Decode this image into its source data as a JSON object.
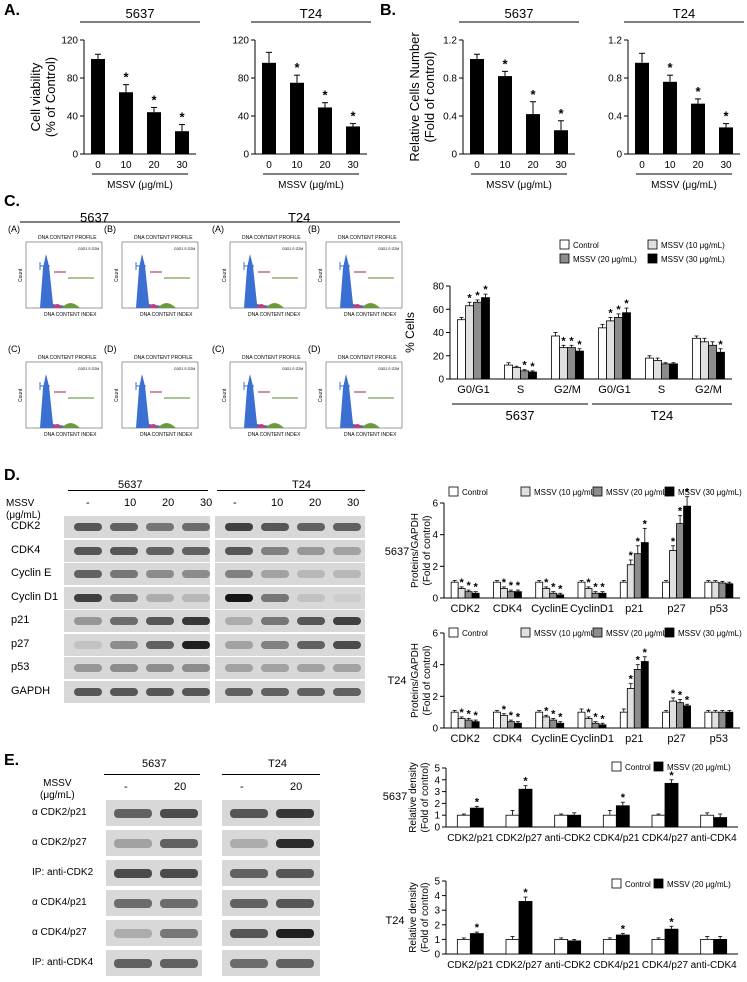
{
  "panels": {
    "A": "A.",
    "B": "B.",
    "C": "C.",
    "D": "D.",
    "E": "E."
  },
  "common": {
    "mssv_unit": "MSSV (μg/mL)",
    "cell_5637": "5637",
    "cell_t24": "T24"
  },
  "chart_data": [
    {
      "id": "A-5637",
      "type": "bar",
      "header": "5637",
      "ylabel": "Cell viability\n(% of Control)",
      "xlabel": "MSSV (μg/mL)",
      "categories": [
        "0",
        "10",
        "20",
        "30"
      ],
      "values": [
        100,
        65,
        44,
        24
      ],
      "errors": [
        5,
        8,
        5,
        7
      ],
      "sig": [
        false,
        true,
        true,
        true
      ],
      "ylim": [
        0,
        120
      ],
      "yticks": [
        "0",
        "40",
        "80",
        "120"
      ]
    },
    {
      "id": "A-T24",
      "type": "bar",
      "header": "T24",
      "xlabel": "MSSV (μg/mL)",
      "categories": [
        "0",
        "10",
        "20",
        "30"
      ],
      "values": [
        96,
        75,
        49,
        29
      ],
      "errors": [
        11,
        8,
        5,
        3
      ],
      "sig": [
        false,
        true,
        true,
        true
      ],
      "ylim": [
        0,
        120
      ],
      "yticks": [
        "0",
        "40",
        "80",
        "120"
      ]
    },
    {
      "id": "B-5637",
      "type": "bar",
      "header": "5637",
      "ylabel": "Relative Cells Number\n(Fold of control)",
      "xlabel": "MSSV (μg/mL)",
      "categories": [
        "0",
        "10",
        "20",
        "30"
      ],
      "values": [
        1.0,
        0.82,
        0.42,
        0.25
      ],
      "errors": [
        0.05,
        0.05,
        0.13,
        0.1
      ],
      "sig": [
        false,
        true,
        true,
        true
      ],
      "ylim": [
        0,
        1.2
      ],
      "yticks": [
        "0",
        "0.4",
        "0.8",
        "1.2"
      ]
    },
    {
      "id": "B-T24",
      "type": "bar",
      "header": "T24",
      "xlabel": "MSSV (μg/mL)",
      "categories": [
        "0",
        "10",
        "20",
        "30"
      ],
      "values": [
        0.96,
        0.76,
        0.53,
        0.28
      ],
      "errors": [
        0.1,
        0.07,
        0.05,
        0.04
      ],
      "sig": [
        false,
        true,
        true,
        true
      ],
      "ylim": [
        0,
        1.2
      ],
      "yticks": [
        "0",
        "0.4",
        "0.8",
        "1.2"
      ]
    },
    {
      "id": "C-cellcycle",
      "type": "bar",
      "ylabel": "% Cells",
      "ylim": [
        0,
        80
      ],
      "yticks": [
        "0",
        "20",
        "40",
        "60",
        "80"
      ],
      "groups": [
        "G0/G1",
        "S",
        "G2/M",
        "G0/G1",
        "S",
        "G2/M"
      ],
      "group_labels": [
        "5637",
        "T24"
      ],
      "legend": [
        "Control",
        "MSSV (10 μg/mL)",
        "MSSV (20 μg/mL)",
        "MSSV (30 μg/mL)"
      ],
      "series": [
        {
          "name": "Control",
          "values": [
            51,
            12,
            37,
            44,
            18,
            35
          ],
          "errors": [
            2,
            2,
            3,
            3,
            2,
            2
          ]
        },
        {
          "name": "MSSV (10 μg/mL)",
          "values": [
            63,
            10,
            27,
            50,
            16,
            32
          ],
          "errors": [
            3,
            1,
            2,
            3,
            2,
            3
          ]
        },
        {
          "name": "MSSV (20 μg/mL)",
          "values": [
            66,
            7,
            27,
            53,
            13,
            29
          ],
          "errors": [
            2,
            1,
            2,
            3,
            1,
            3
          ]
        },
        {
          "name": "MSSV (30 μg/mL)",
          "values": [
            70,
            6,
            24,
            57,
            13,
            23
          ],
          "errors": [
            3,
            1,
            2,
            4,
            1,
            3
          ]
        }
      ],
      "sig": [
        [
          false,
          false,
          false,
          false,
          false,
          false
        ],
        [
          true,
          false,
          true,
          true,
          false,
          false
        ],
        [
          true,
          true,
          true,
          true,
          false,
          false
        ],
        [
          true,
          true,
          true,
          true,
          false,
          true
        ]
      ]
    },
    {
      "id": "D-5637",
      "type": "bar",
      "cell": "5637",
      "ylabel": "Proteins/GAPDH\n(Fold of control)",
      "ylim": [
        0,
        6
      ],
      "yticks": [
        "0",
        "2",
        "4",
        "6"
      ],
      "groups": [
        "CDK2",
        "CDK4",
        "CyclinE",
        "CyclinD1",
        "p21",
        "p27",
        "p53"
      ],
      "legend": [
        "Control",
        "MSSV (10 μg/mL)",
        "MSSV (20 μg/mL)",
        "MSSV (30 μg/mL)"
      ],
      "series": [
        {
          "name": "Control",
          "values": [
            1,
            1,
            1,
            1,
            1,
            1,
            1
          ],
          "errors": [
            0.1,
            0.1,
            0.1,
            0.1,
            0.1,
            0.1,
            0.1
          ]
        },
        {
          "name": "MSSV (10 μg/mL)",
          "values": [
            0.6,
            0.6,
            0.6,
            0.6,
            2.1,
            3.0,
            1.0
          ],
          "errors": [
            0.1,
            0.1,
            0.1,
            0.1,
            0.3,
            0.3,
            0.1
          ]
        },
        {
          "name": "MSSV (20 μg/mL)",
          "values": [
            0.4,
            0.4,
            0.3,
            0.3,
            2.8,
            4.7,
            0.95
          ],
          "errors": [
            0.1,
            0.1,
            0.1,
            0.1,
            0.5,
            0.5,
            0.1
          ]
        },
        {
          "name": "MSSV (30 μg/mL)",
          "values": [
            0.3,
            0.4,
            0.2,
            0.3,
            3.5,
            5.8,
            0.9
          ],
          "errors": [
            0.1,
            0.1,
            0.1,
            0.1,
            0.9,
            0.6,
            0.1
          ]
        }
      ],
      "sig": [
        [
          false,
          false,
          false,
          false,
          false,
          false,
          false
        ],
        [
          true,
          true,
          true,
          true,
          true,
          true,
          false
        ],
        [
          true,
          true,
          true,
          true,
          true,
          true,
          false
        ],
        [
          true,
          true,
          true,
          true,
          true,
          true,
          false
        ]
      ]
    },
    {
      "id": "D-T24",
      "type": "bar",
      "cell": "T24",
      "ylabel": "Proteins/GAPDH\n(Fold of control)",
      "ylim": [
        0,
        6
      ],
      "yticks": [
        "0",
        "2",
        "4",
        "6"
      ],
      "groups": [
        "CDK2",
        "CDK4",
        "CyclinE",
        "CyclinD1",
        "p21",
        "p27",
        "p53"
      ],
      "legend": [
        "Control",
        "MSSV (10 μg/mL)",
        "MSSV (20 μg/mL)",
        "MSSV (30 μg/mL)"
      ],
      "series": [
        {
          "name": "Control",
          "values": [
            1,
            1,
            1,
            1,
            1,
            1,
            1
          ],
          "errors": [
            0.1,
            0.1,
            0.1,
            0.2,
            0.2,
            0.1,
            0.1
          ]
        },
        {
          "name": "MSSV (10 μg/mL)",
          "values": [
            0.6,
            0.8,
            0.7,
            0.6,
            2.5,
            1.7,
            1.0
          ],
          "errors": [
            0.1,
            0.1,
            0.1,
            0.1,
            0.3,
            0.2,
            0.1
          ]
        },
        {
          "name": "MSSV (20 μg/mL)",
          "values": [
            0.5,
            0.4,
            0.5,
            0.3,
            3.7,
            1.6,
            1.0
          ],
          "errors": [
            0.1,
            0.1,
            0.1,
            0.1,
            0.3,
            0.2,
            0.1
          ]
        },
        {
          "name": "MSSV (30 μg/mL)",
          "values": [
            0.4,
            0.3,
            0.3,
            0.2,
            4.2,
            1.4,
            1.0
          ],
          "errors": [
            0.1,
            0.1,
            0.1,
            0.1,
            0.3,
            0.1,
            0.1
          ]
        }
      ],
      "sig": [
        [
          false,
          false,
          false,
          false,
          false,
          false,
          false
        ],
        [
          true,
          true,
          true,
          true,
          true,
          true,
          false
        ],
        [
          true,
          true,
          true,
          true,
          true,
          true,
          false
        ],
        [
          true,
          true,
          true,
          true,
          true,
          true,
          false
        ]
      ]
    },
    {
      "id": "E-5637",
      "type": "bar",
      "cell": "5637",
      "ylabel": "Relative density\n(Fold of control)",
      "ylim": [
        0,
        5
      ],
      "yticks": [
        "0",
        "1",
        "2",
        "3",
        "4",
        "5"
      ],
      "groups": [
        "CDK2/p21",
        "CDK2/p27",
        "anti-CDK2",
        "CDK4/p21",
        "CDK4/p27",
        "anti-CDK4"
      ],
      "legend": [
        "Control",
        "MSSV (20 μg/mL)"
      ],
      "series": [
        {
          "name": "Control",
          "values": [
            1,
            1,
            1,
            1,
            1,
            1
          ],
          "errors": [
            0.1,
            0.4,
            0.1,
            0.4,
            0.1,
            0.2
          ]
        },
        {
          "name": "MSSV (20 μg/mL)",
          "values": [
            1.6,
            3.2,
            1,
            1.8,
            3.7,
            0.8
          ],
          "errors": [
            0.15,
            0.3,
            0.2,
            0.3,
            0.3,
            0.3
          ]
        }
      ],
      "sig": [
        [
          false,
          false,
          false,
          false,
          false,
          false
        ],
        [
          true,
          true,
          false,
          true,
          true,
          false
        ]
      ]
    },
    {
      "id": "E-T24",
      "type": "bar",
      "cell": "T24",
      "ylabel": "Relative density\n(Fold of control)",
      "ylim": [
        0,
        5
      ],
      "yticks": [
        "0",
        "1",
        "2",
        "3",
        "4",
        "5"
      ],
      "groups": [
        "CDK2/p21",
        "CDK2/p27",
        "anti-CDK2",
        "CDK4/p21",
        "CDK4/p27",
        "anti-CDK4"
      ],
      "legend": [
        "Control",
        "MSSV (20 μg/mL)"
      ],
      "series": [
        {
          "name": "Control",
          "values": [
            1,
            1,
            1,
            1,
            1,
            1
          ],
          "errors": [
            0.1,
            0.2,
            0.1,
            0.1,
            0.1,
            0.2
          ]
        },
        {
          "name": "MSSV (20 μg/mL)",
          "values": [
            1.4,
            3.6,
            0.9,
            1.3,
            1.7,
            1.0
          ],
          "errors": [
            0.1,
            0.3,
            0.1,
            0.1,
            0.2,
            0.2
          ]
        }
      ],
      "sig": [
        [
          false,
          false,
          false,
          false,
          false,
          false
        ],
        [
          true,
          true,
          false,
          true,
          true,
          false
        ]
      ]
    }
  ],
  "flow": {
    "cells": [
      "5637",
      "T24"
    ],
    "labels": [
      "(A)",
      "(B)",
      "(C)",
      "(D)"
    ],
    "title": "DNA CONTENT PROFILE",
    "xlabel": "DNA CONTENT INDEX",
    "ylabel": "Count"
  },
  "blotD": {
    "mssv_label": "MSSV\n(μg/mL)",
    "doses": [
      "-",
      "10",
      "20",
      "30"
    ],
    "proteins": [
      "CDK2",
      "CDK4",
      "Cyclin E",
      "Cyclin D1",
      "p21",
      "p27",
      "p53",
      "GAPDH"
    ]
  },
  "blotE": {
    "mssv_label": "MSSV\n(μg/mL)",
    "doses": [
      "-",
      "20"
    ],
    "rows": [
      "α CDK2/p21",
      "α CDK2/p27",
      "IP: anti-CDK2",
      "α CDK4/p21",
      "α CDK4/p27",
      "IP: anti-CDK4"
    ]
  }
}
